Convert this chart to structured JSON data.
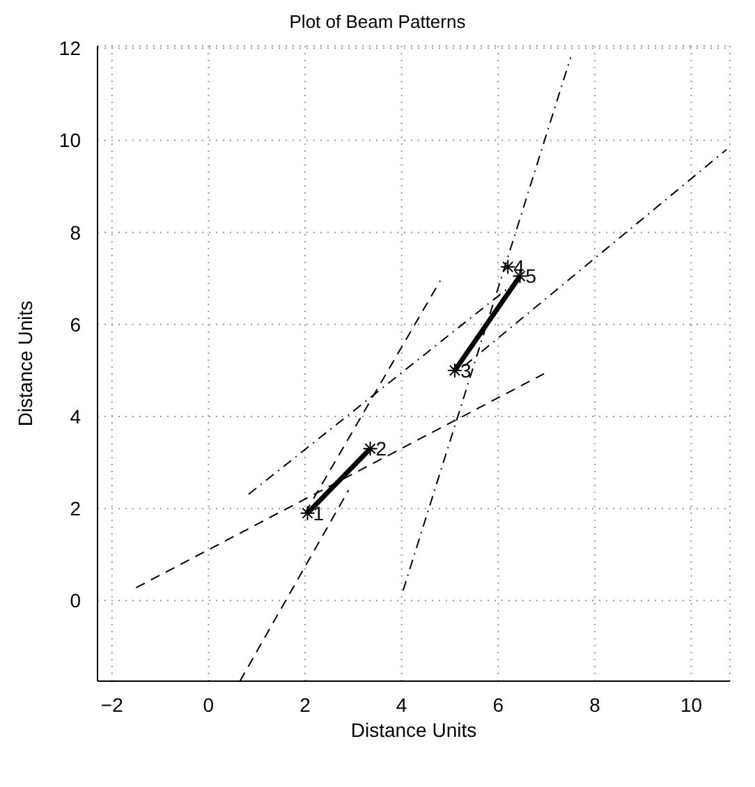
{
  "chart_data": {
    "type": "line",
    "title": "Plot of Beam Patterns",
    "xlabel": "Distance Units",
    "ylabel": "Distance Units",
    "xlim": [
      -2.3,
      10.8
    ],
    "ylim": [
      -1.75,
      12.05
    ],
    "xticks": [
      -2,
      0,
      2,
      4,
      6,
      8,
      10
    ],
    "yticks": [
      0,
      2,
      4,
      6,
      8,
      10,
      12
    ],
    "grid": true,
    "series": [
      {
        "color": "#000000",
        "line_style": "dashed",
        "x": [
          -1.5,
          6.95
        ],
        "values": [
          0.28,
          4.93
        ]
      },
      {
        "color": "#000000",
        "line_style": "dashed",
        "x": [
          0.65,
          2.9
        ],
        "values": [
          -1.75,
          2.4
        ]
      },
      {
        "color": "#000000",
        "line_style": "dashed",
        "x": [
          2.0,
          4.8
        ],
        "values": [
          1.9,
          6.95
        ]
      },
      {
        "color": "#000000",
        "line_style": "dashdot",
        "x": [
          4.03,
          7.5
        ],
        "values": [
          0.22,
          11.8
        ]
      },
      {
        "color": "#000000",
        "line_style": "dashdot",
        "x": [
          0.83,
          6.4
        ],
        "values": [
          2.31,
          6.95
        ]
      },
      {
        "color": "#000000",
        "line_style": "dashdot",
        "x": [
          5.3,
          10.73
        ],
        "values": [
          5.1,
          9.8
        ]
      },
      {
        "color": "#000000",
        "line_style": "solid",
        "marker": "cross",
        "x": [
          2.05,
          3.35
        ],
        "values": [
          1.9,
          3.3
        ]
      },
      {
        "color": "#000000",
        "line_style": "solid",
        "marker": "cross",
        "x": [
          5.1,
          6.45
        ],
        "values": [
          5.0,
          7.05
        ]
      },
      {
        "type": "scatter",
        "color": "#000000",
        "marker": "cross",
        "x": [
          6.2
        ],
        "values": [
          7.25
        ]
      }
    ],
    "annotations": [
      {
        "text": "1",
        "x": 2.05,
        "y": 1.9
      },
      {
        "text": "2",
        "x": 3.35,
        "y": 3.3
      },
      {
        "text": "3",
        "x": 5.1,
        "y": 5.0
      },
      {
        "text": "4",
        "x": 6.2,
        "y": 7.25
      },
      {
        "text": "5",
        "x": 6.45,
        "y": 7.05
      }
    ]
  }
}
